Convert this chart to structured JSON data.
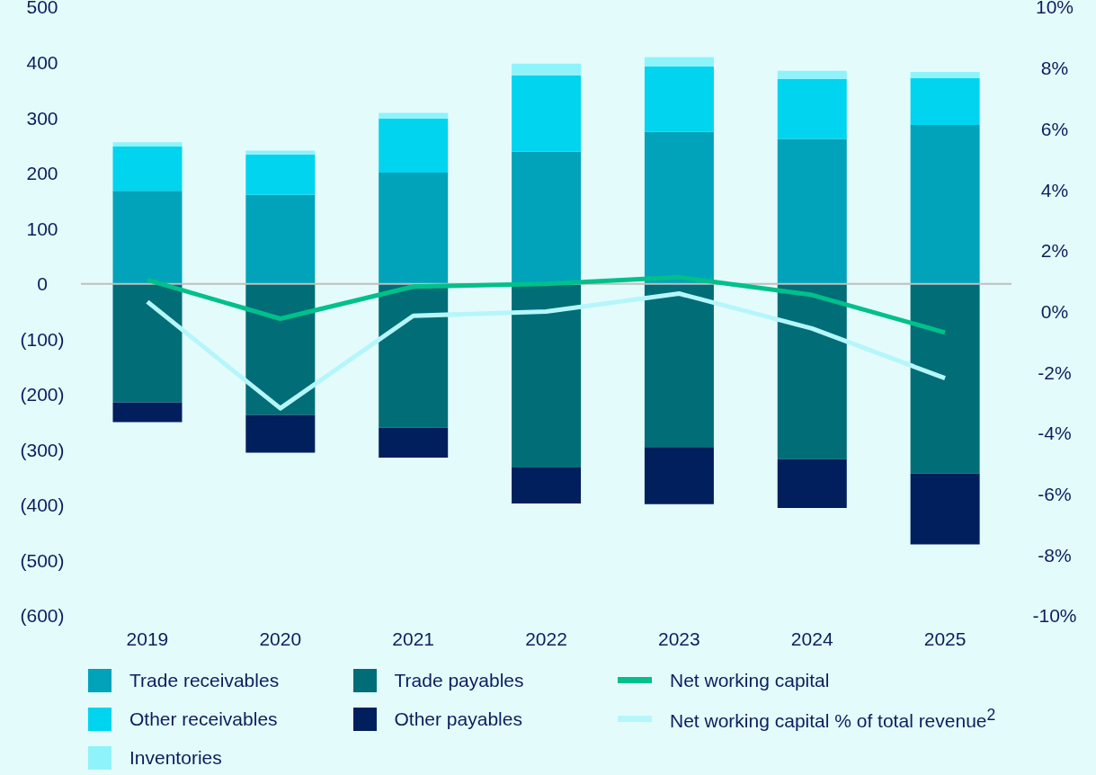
{
  "chart_data": {
    "type": "bar",
    "stacked": true,
    "categories": [
      "2019",
      "2020",
      "2021",
      "2022",
      "2023",
      "2024",
      "2025"
    ],
    "series": [
      {
        "name": "Trade receivables",
        "color": "#00a3b9",
        "values": [
          168,
          161,
          201,
          239,
          275,
          262,
          287
        ]
      },
      {
        "name": "Other receivables",
        "color": "#00d4ee",
        "values": [
          80,
          73,
          98,
          138,
          118,
          108,
          85
        ]
      },
      {
        "name": "Inventories",
        "color": "#8ff3fb",
        "values": [
          8,
          7,
          10,
          21,
          17,
          15,
          11
        ]
      },
      {
        "name": "Trade payables",
        "color": "#006d77",
        "values": [
          -214,
          -237,
          -260,
          -332,
          -295,
          -317,
          -343
        ]
      },
      {
        "name": "Other payables",
        "color": "#001f5c",
        "values": [
          -36,
          -68,
          -54,
          -65,
          -103,
          -88,
          -128
        ]
      },
      {
        "name": "Net working capital",
        "type": "line",
        "color": "#00c08b",
        "values": [
          7,
          -63,
          -5,
          0,
          12,
          -20,
          -88
        ]
      },
      {
        "name": "Net working capital % of total revenue$^{2}$",
        "type": "line",
        "axis": "y2",
        "color": "#b5f6fb",
        "values": [
          0.32,
          -3.18,
          -0.14,
          0.0,
          0.59,
          -0.56,
          -2.19
        ]
      }
    ],
    "ylim": [
      -600,
      500
    ],
    "yticks": [
      {
        "value": -600,
        "label": "(600)"
      },
      {
        "value": -500,
        "label": "(500)"
      },
      {
        "value": -400,
        "label": "(400)"
      },
      {
        "value": -300,
        "label": "(300)"
      },
      {
        "value": -200,
        "label": "(200)"
      },
      {
        "value": -100,
        "label": "(100)"
      },
      0,
      100,
      200,
      300,
      400,
      500
    ],
    "y2lim": [
      -10,
      10
    ],
    "y2ticks": [
      {
        "value": -10,
        "label": "-10%"
      },
      {
        "value": -8,
        "label": "-8%"
      },
      {
        "value": -6,
        "label": "-6%"
      },
      {
        "value": -4,
        "label": "-4%"
      },
      {
        "value": -2,
        "label": "-2%"
      },
      {
        "value": 0,
        "label": "0%"
      },
      {
        "value": 2,
        "label": "2%"
      },
      {
        "value": 4,
        "label": "4%"
      },
      {
        "value": 6,
        "label": "6%"
      },
      {
        "value": 8,
        "label": "8%"
      },
      {
        "value": 10,
        "label": "10%"
      }
    ],
    "ref_lines": [
      {
        "axis": "y",
        "value": 0,
        "color": "#bfbfbf"
      }
    ],
    "grid": false,
    "legend": "bottom"
  }
}
